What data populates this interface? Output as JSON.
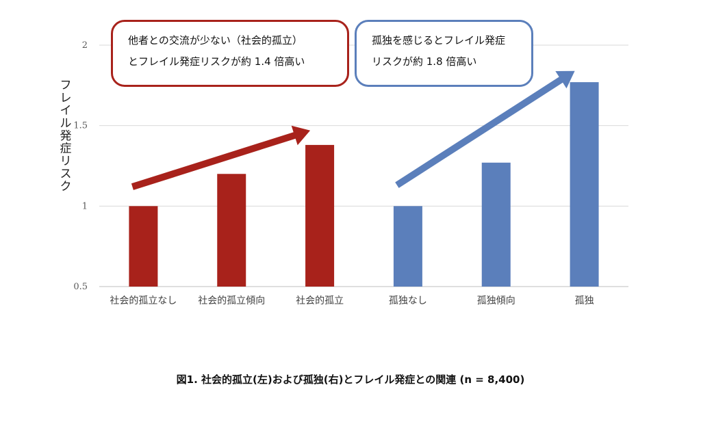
{
  "chart_data": {
    "type": "bar",
    "categories": [
      "社会的孤立なし",
      "社会的孤立傾向",
      "社会的孤立",
      "孤独なし",
      "孤独傾向",
      "孤独"
    ],
    "values": [
      1.0,
      1.2,
      1.38,
      1.0,
      1.27,
      1.77
    ],
    "bar_colors": [
      "#a8221b",
      "#a8221b",
      "#a8221b",
      "#5b7fbb",
      "#5b7fbb",
      "#5b7fbb"
    ],
    "ylabel": "フレイル発症リスク",
    "ylim": [
      0.5,
      2
    ],
    "yticks": [
      0.5,
      1,
      1.5,
      2
    ],
    "ytick_labels": [
      "0.5",
      "1",
      "1.5",
      "2"
    ],
    "grid": true,
    "annotations": [
      {
        "lines": [
          "他者との交流が少ない（社会的孤立）",
          "とフレイル発症リスクが約 1.4 倍高い"
        ],
        "color": "#a8221b",
        "arrow": {
          "from_category": 0,
          "from_value": 1.12,
          "to_category": 2,
          "to_value": 1.47
        }
      },
      {
        "lines": [
          "孤独を感じるとフレイル発症",
          "リスクが約 1.8 倍高い"
        ],
        "color": "#5b7fbb",
        "arrow": {
          "from_category": 3,
          "from_value": 1.13,
          "to_category": 5,
          "to_value": 1.84
        }
      }
    ],
    "caption": "図1.  社会的孤立(左)および孤独(右)とフレイル発症との関連  (n = 8,400)"
  }
}
